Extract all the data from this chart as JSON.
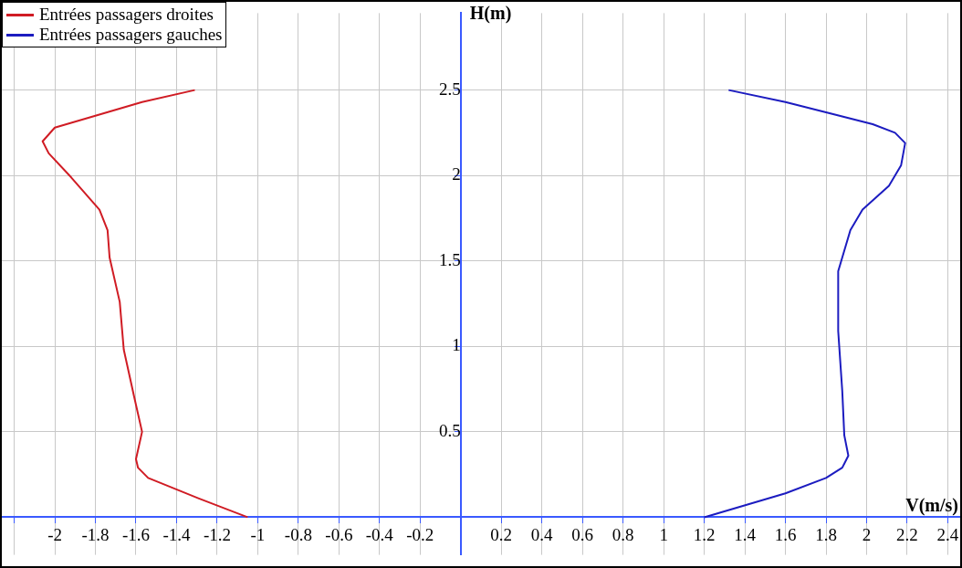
{
  "chart_data": {
    "type": "line",
    "xlabel": "V(m/s)",
    "ylabel": "H(m)",
    "legend": "top left",
    "grid": true,
    "marker": "none",
    "line_style": "solid",
    "xlim": [
      -2.27,
      2.47
    ],
    "ylim": [
      -0.22,
      2.95
    ],
    "xticks": [
      {
        "value": -2.2,
        "label": null
      },
      -2,
      -1.8,
      -1.6,
      -1.4,
      -1.2,
      -1,
      -0.8,
      -0.6,
      -0.4,
      -0.2,
      0.2,
      0.4,
      0.6,
      0.8,
      1,
      1.2,
      1.4,
      1.6,
      1.8,
      2,
      2.2,
      2.4
    ],
    "yticks": [
      0.5,
      1,
      1.5,
      2,
      2.5
    ],
    "series": [
      {
        "name": "Entrées passagers droites",
        "color": "#d01c24",
        "x": [
          -1.05,
          -1.29,
          -1.54,
          -1.59,
          -1.6,
          -1.57,
          -1.61,
          -1.66,
          -1.68,
          -1.73,
          -1.74,
          -1.78,
          -1.92,
          -2.03,
          -2.06,
          -2.0,
          -1.8,
          -1.57,
          -1.31
        ],
        "values": [
          0,
          0.11,
          0.23,
          0.29,
          0.34,
          0.5,
          0.71,
          0.98,
          1.26,
          1.52,
          1.68,
          1.8,
          1.99,
          2.13,
          2.2,
          2.28,
          2.35,
          2.43,
          2.5
        ]
      },
      {
        "name": "Entrées passagers gauches",
        "color": "#1c1cc0",
        "x": [
          1.2,
          1.6,
          1.8,
          1.88,
          1.91,
          1.89,
          1.88,
          1.86,
          1.86,
          1.88,
          1.92,
          1.98,
          2.11,
          2.17,
          2.19,
          2.14,
          2.03,
          1.8,
          1.6,
          1.32
        ],
        "values": [
          0,
          0.14,
          0.23,
          0.29,
          0.36,
          0.48,
          0.74,
          1.09,
          1.44,
          1.52,
          1.68,
          1.8,
          1.94,
          2.06,
          2.19,
          2.25,
          2.3,
          2.37,
          2.43,
          2.5
        ]
      }
    ]
  }
}
